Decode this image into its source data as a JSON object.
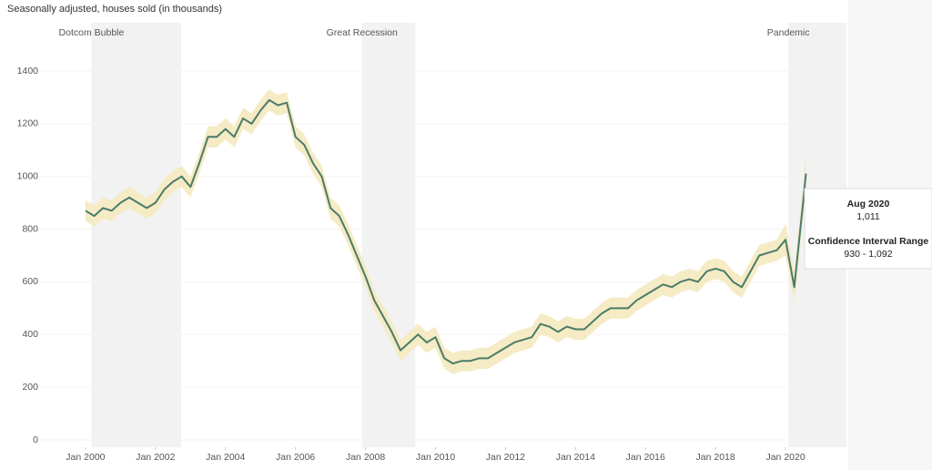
{
  "chart_data": {
    "type": "line",
    "y_label": "Seasonally adjusted, houses sold (in thousands)",
    "xlim": [
      1998.65,
      2021.74
    ],
    "ylim": [
      0,
      1560
    ],
    "yticks": [
      0,
      200,
      400,
      600,
      800,
      1000,
      1200,
      1400
    ],
    "xticks": [
      {
        "value": 2000,
        "label": "Jan 2000"
      },
      {
        "value": 2002,
        "label": "Jan 2002"
      },
      {
        "value": 2004,
        "label": "Jan 2004"
      },
      {
        "value": 2006,
        "label": "Jan 2006"
      },
      {
        "value": 2008,
        "label": "Jan 2008"
      },
      {
        "value": 2010,
        "label": "Jan 2010"
      },
      {
        "value": 2012,
        "label": "Jan 2012"
      },
      {
        "value": 2014,
        "label": "Jan 2014"
      },
      {
        "value": 2016,
        "label": "Jan 2016"
      },
      {
        "value": 2018,
        "label": "Jan 2018"
      },
      {
        "value": 2020,
        "label": "Jan 2020"
      }
    ],
    "shaded_regions": [
      {
        "label": "Dotcom Bubble",
        "start": 2000.17,
        "end": 2002.73
      },
      {
        "label": "Great Recession",
        "start": 2007.9,
        "end": 2009.42
      },
      {
        "label": "Pandemic",
        "start": 2020.08,
        "end": 2021.74
      }
    ],
    "shade_color": "#f2f2f2",
    "x": [
      2000,
      2000.25,
      2000.5,
      2000.75,
      2001,
      2001.25,
      2001.5,
      2001.75,
      2002,
      2002.25,
      2002.5,
      2002.75,
      2003,
      2003.25,
      2003.5,
      2003.75,
      2004,
      2004.25,
      2004.5,
      2004.75,
      2005,
      2005.25,
      2005.5,
      2005.75,
      2006,
      2006.25,
      2006.5,
      2006.75,
      2007,
      2007.25,
      2007.5,
      2007.75,
      2008,
      2008.25,
      2008.5,
      2008.75,
      2009,
      2009.25,
      2009.5,
      2009.75,
      2010,
      2010.25,
      2010.5,
      2010.75,
      2011,
      2011.25,
      2011.5,
      2011.75,
      2012,
      2012.25,
      2012.5,
      2012.75,
      2013,
      2013.25,
      2013.5,
      2013.75,
      2014,
      2014.25,
      2014.5,
      2014.75,
      2015,
      2015.25,
      2015.5,
      2015.75,
      2016,
      2016.25,
      2016.5,
      2016.75,
      2017,
      2017.25,
      2017.5,
      2017.75,
      2018,
      2018.25,
      2018.5,
      2018.75,
      2019,
      2019.25,
      2019.5,
      2019.75,
      2020,
      2020.25,
      2020.5,
      2020.583
    ],
    "series": [
      {
        "color": "#4b7b6a",
        "values": [
          870,
          850,
          880,
          870,
          900,
          920,
          900,
          880,
          900,
          950,
          980,
          1000,
          960,
          1050,
          1150,
          1150,
          1180,
          1150,
          1220,
          1200,
          1250,
          1290,
          1270,
          1280,
          1150,
          1120,
          1050,
          1000,
          880,
          850,
          780,
          700,
          620,
          530,
          470,
          410,
          340,
          370,
          400,
          370,
          390,
          310,
          290,
          300,
          300,
          310,
          310,
          330,
          350,
          370,
          380,
          390,
          440,
          430,
          410,
          430,
          420,
          420,
          450,
          480,
          500,
          500,
          500,
          530,
          550,
          570,
          590,
          580,
          600,
          610,
          600,
          640,
          650,
          640,
          600,
          580,
          640,
          700,
          710,
          720,
          760,
          580,
          900,
          1011
        ]
      }
    ],
    "band": {
      "color": "#f5ebc4",
      "lower": [
        830,
        810,
        840,
        830,
        860,
        880,
        860,
        840,
        860,
        910,
        940,
        960,
        920,
        1010,
        1110,
        1110,
        1140,
        1110,
        1180,
        1160,
        1210,
        1250,
        1230,
        1240,
        1110,
        1080,
        1010,
        960,
        840,
        810,
        740,
        660,
        580,
        490,
        430,
        370,
        300,
        330,
        360,
        330,
        350,
        270,
        250,
        260,
        260,
        270,
        270,
        290,
        310,
        330,
        340,
        350,
        400,
        390,
        370,
        390,
        380,
        380,
        410,
        440,
        460,
        460,
        460,
        490,
        510,
        530,
        550,
        540,
        560,
        570,
        560,
        600,
        610,
        600,
        560,
        540,
        600,
        660,
        670,
        680,
        700,
        520,
        840,
        930
      ],
      "upper": [
        910,
        890,
        920,
        910,
        940,
        960,
        940,
        920,
        940,
        990,
        1020,
        1040,
        1000,
        1090,
        1190,
        1190,
        1220,
        1190,
        1260,
        1240,
        1290,
        1330,
        1310,
        1320,
        1190,
        1160,
        1090,
        1040,
        920,
        890,
        820,
        740,
        660,
        570,
        510,
        450,
        380,
        410,
        440,
        410,
        430,
        350,
        330,
        340,
        340,
        350,
        350,
        370,
        390,
        410,
        420,
        430,
        480,
        470,
        450,
        470,
        460,
        460,
        490,
        520,
        540,
        540,
        540,
        570,
        590,
        610,
        630,
        620,
        640,
        650,
        640,
        680,
        690,
        680,
        640,
        620,
        680,
        740,
        750,
        760,
        820,
        640,
        960,
        1092
      ]
    },
    "tooltip": {
      "date": "Aug 2020",
      "value": "1,011",
      "ci_title": "Confidence Interval Range",
      "ci_range": "930 - 1,092"
    }
  }
}
